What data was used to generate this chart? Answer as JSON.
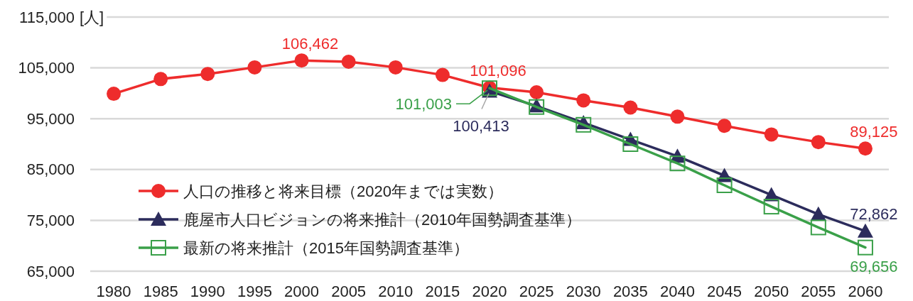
{
  "chart_data": {
    "type": "line",
    "ylabel": "[人]",
    "categories": [
      "1980",
      "1985",
      "1990",
      "1995",
      "2000",
      "2005",
      "2010",
      "2015",
      "2020",
      "2025",
      "2030",
      "2035",
      "2040",
      "2045",
      "2050",
      "2055",
      "2060"
    ],
    "series": [
      {
        "name": "人口の推移と将来目標（2020年までは実数）",
        "color": "#ee2c2c",
        "marker": "circle",
        "values": [
          99900,
          102800,
          103800,
          105100,
          106462,
          106200,
          105100,
          103600,
          101096,
          100200,
          98600,
          97200,
          95400,
          93600,
          91900,
          90400,
          89125
        ],
        "value_labels": [
          null,
          null,
          null,
          null,
          "106,462",
          null,
          null,
          null,
          "101,096",
          null,
          null,
          null,
          null,
          null,
          null,
          null,
          "89,125"
        ]
      },
      {
        "name": "鹿屋市人口ビジョンの将来推計（2010年国勢調査基準）",
        "color": "#2c2c5c",
        "marker": "triangle",
        "values": [
          null,
          null,
          null,
          null,
          null,
          null,
          null,
          null,
          100413,
          97500,
          94200,
          90900,
          87600,
          83800,
          80000,
          76200,
          72862
        ],
        "value_labels": [
          null,
          null,
          null,
          null,
          null,
          null,
          null,
          null,
          "100,413",
          null,
          null,
          null,
          null,
          null,
          null,
          null,
          "72,862"
        ]
      },
      {
        "name": "最新の将来推計（2015年国勢調査基準）",
        "color": "#3aa049",
        "marker": "square",
        "values": [
          null,
          null,
          null,
          null,
          null,
          null,
          null,
          null,
          101003,
          97300,
          93800,
          90000,
          86200,
          81900,
          77700,
          73600,
          69656
        ],
        "value_labels": [
          null,
          null,
          null,
          null,
          null,
          null,
          null,
          null,
          "101,003",
          null,
          null,
          null,
          null,
          null,
          null,
          null,
          "69,656"
        ]
      }
    ],
    "ylim": [
      65000,
      115000
    ],
    "yticks": [
      {
        "value": 65000,
        "label": "65,000"
      },
      {
        "value": 75000,
        "label": "75,000"
      },
      {
        "value": 85000,
        "label": "85,000"
      },
      {
        "value": 95000,
        "label": "95,000"
      },
      {
        "value": 105000,
        "label": "105,000"
      },
      {
        "value": 115000,
        "label": "115,000"
      }
    ],
    "grid": "y",
    "legend": "bottom left"
  }
}
